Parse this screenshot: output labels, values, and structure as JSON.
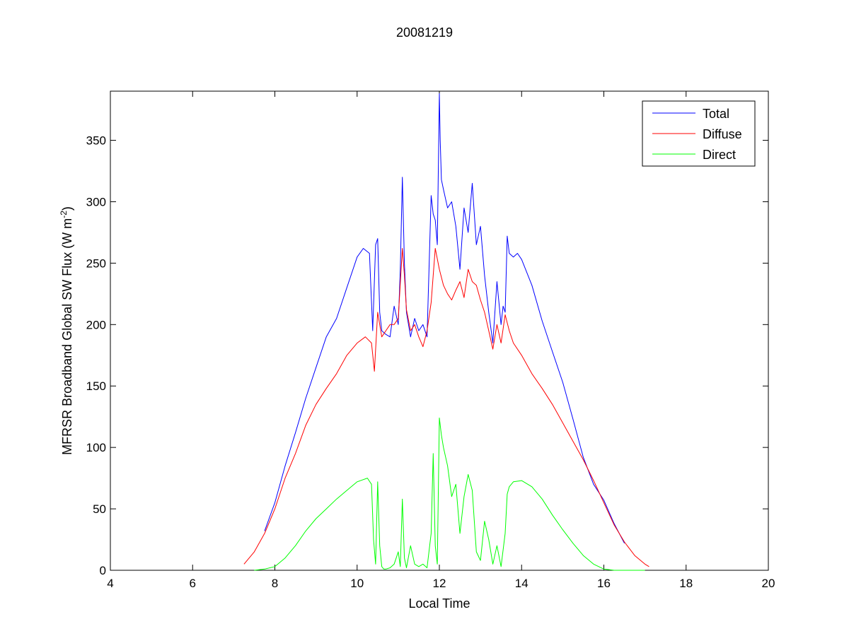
{
  "chart_data": {
    "type": "line",
    "title": "20081219",
    "xlabel": "Local Time",
    "ylabel_main": "MFRSR Broadband Global SW Flux (W m",
    "ylabel_sup": "-2",
    "ylabel_close": ")",
    "xlim": [
      4,
      20
    ],
    "ylim": [
      0,
      390
    ],
    "xticks": [
      4,
      6,
      8,
      10,
      12,
      14,
      16,
      18,
      20
    ],
    "yticks": [
      0,
      50,
      100,
      150,
      200,
      250,
      300,
      350
    ],
    "grid": false,
    "legend_position": "top-right",
    "series": [
      {
        "name": "Total",
        "color": "#0000ff",
        "x": [
          7.75,
          8.0,
          8.25,
          8.5,
          8.75,
          9.0,
          9.25,
          9.5,
          9.75,
          10.0,
          10.15,
          10.3,
          10.38,
          10.45,
          10.5,
          10.55,
          10.6,
          10.7,
          10.8,
          10.9,
          11.0,
          11.05,
          11.1,
          11.15,
          11.2,
          11.3,
          11.4,
          11.5,
          11.6,
          11.7,
          11.8,
          11.85,
          11.9,
          11.95,
          12.0,
          12.02,
          12.05,
          12.1,
          12.2,
          12.3,
          12.4,
          12.5,
          12.6,
          12.7,
          12.8,
          12.9,
          13.0,
          13.1,
          13.2,
          13.3,
          13.4,
          13.5,
          13.55,
          13.6,
          13.65,
          13.7,
          13.8,
          13.9,
          14.0,
          14.25,
          14.5,
          14.75,
          15.0,
          15.25,
          15.5,
          15.75,
          16.0,
          16.25,
          16.5
        ],
        "y": [
          32,
          55,
          85,
          112,
          140,
          165,
          190,
          205,
          230,
          255,
          262,
          258,
          195,
          265,
          270,
          210,
          195,
          192,
          190,
          215,
          200,
          245,
          320,
          250,
          210,
          190,
          205,
          195,
          200,
          190,
          305,
          290,
          285,
          265,
          388,
          350,
          318,
          310,
          295,
          300,
          280,
          245,
          295,
          275,
          315,
          265,
          280,
          240,
          210,
          185,
          235,
          200,
          215,
          210,
          272,
          258,
          255,
          258,
          253,
          232,
          203,
          178,
          153,
          123,
          92,
          70,
          57,
          38,
          22
        ]
      },
      {
        "name": "Diffuse",
        "color": "#ff0000",
        "x": [
          7.25,
          7.5,
          7.75,
          8.0,
          8.25,
          8.5,
          8.75,
          9.0,
          9.25,
          9.5,
          9.75,
          10.0,
          10.2,
          10.35,
          10.42,
          10.5,
          10.6,
          10.7,
          10.8,
          10.9,
          11.0,
          11.1,
          11.15,
          11.2,
          11.3,
          11.4,
          11.5,
          11.6,
          11.7,
          11.8,
          11.9,
          12.0,
          12.1,
          12.2,
          12.3,
          12.4,
          12.5,
          12.6,
          12.7,
          12.8,
          12.9,
          13.0,
          13.1,
          13.2,
          13.3,
          13.4,
          13.5,
          13.6,
          13.7,
          13.8,
          14.0,
          14.25,
          14.5,
          14.75,
          15.0,
          15.25,
          15.5,
          15.75,
          16.0,
          16.25,
          16.5,
          16.75,
          17.0,
          17.1
        ],
        "y": [
          5,
          15,
          30,
          50,
          75,
          95,
          118,
          135,
          148,
          160,
          175,
          185,
          190,
          185,
          162,
          210,
          190,
          195,
          200,
          200,
          205,
          262,
          240,
          212,
          195,
          200,
          190,
          182,
          195,
          218,
          262,
          245,
          232,
          225,
          220,
          228,
          235,
          222,
          245,
          235,
          232,
          220,
          210,
          195,
          180,
          200,
          185,
          208,
          195,
          185,
          175,
          160,
          148,
          135,
          120,
          105,
          90,
          73,
          55,
          37,
          23,
          12,
          5,
          3
        ]
      },
      {
        "name": "Direct",
        "color": "#00ff00",
        "x": [
          7.5,
          7.75,
          8.0,
          8.25,
          8.5,
          8.75,
          9.0,
          9.25,
          9.5,
          9.75,
          10.0,
          10.25,
          10.35,
          10.4,
          10.45,
          10.5,
          10.55,
          10.6,
          10.65,
          10.7,
          10.8,
          10.9,
          11.0,
          11.05,
          11.1,
          11.15,
          11.2,
          11.3,
          11.4,
          11.5,
          11.6,
          11.7,
          11.8,
          11.85,
          11.9,
          11.95,
          12.0,
          12.05,
          12.1,
          12.2,
          12.3,
          12.4,
          12.5,
          12.6,
          12.7,
          12.8,
          12.9,
          13.0,
          13.1,
          13.2,
          13.3,
          13.4,
          13.5,
          13.6,
          13.65,
          13.7,
          13.8,
          14.0,
          14.25,
          14.5,
          14.75,
          15.0,
          15.25,
          15.5,
          15.75,
          16.0,
          16.25,
          16.5,
          16.75,
          17.0
        ],
        "y": [
          0,
          1,
          3,
          10,
          20,
          32,
          42,
          50,
          58,
          65,
          72,
          75,
          70,
          25,
          5,
          72,
          20,
          3,
          1,
          1,
          2,
          5,
          15,
          3,
          58,
          10,
          2,
          20,
          5,
          3,
          5,
          2,
          30,
          95,
          20,
          5,
          124,
          110,
          100,
          85,
          60,
          70,
          30,
          60,
          78,
          65,
          15,
          8,
          40,
          25,
          5,
          20,
          3,
          30,
          62,
          68,
          72,
          73,
          68,
          58,
          45,
          33,
          22,
          12,
          5,
          1,
          0,
          0,
          0,
          0
        ]
      }
    ]
  }
}
